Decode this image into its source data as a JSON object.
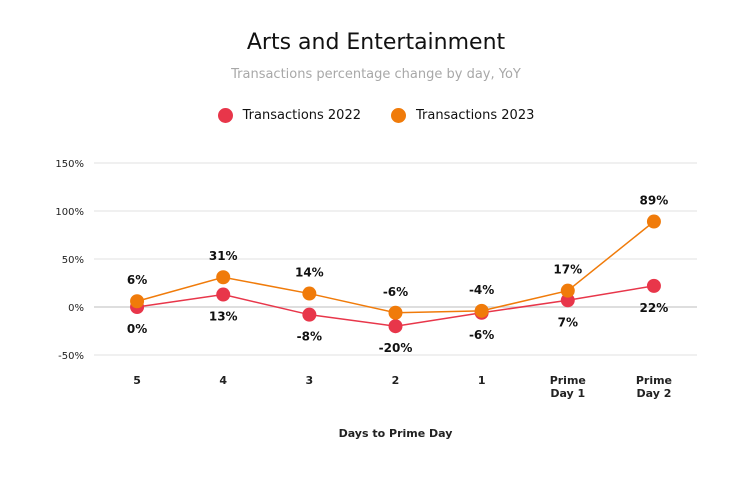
{
  "chart_data": {
    "type": "line",
    "title": "Arts and Entertainment",
    "subtitle": "Transactions percentage change by day, YoY",
    "xlabel": "Days to Prime Day",
    "ylabel": "",
    "categories": [
      [
        "5"
      ],
      [
        "4"
      ],
      [
        "3"
      ],
      [
        "2"
      ],
      [
        "1"
      ],
      [
        "Prime",
        "Day 1"
      ],
      [
        "Prime",
        "Day 2"
      ]
    ],
    "yticks": [
      150,
      100,
      50,
      0,
      -50
    ],
    "ytick_labels": [
      "150%",
      "100%",
      "50%",
      "0%",
      "-50%"
    ],
    "ylim": [
      -50,
      150
    ],
    "grid": true,
    "legend_position": "top-center",
    "series": [
      {
        "name": "Transactions 2022",
        "color": "#e8364a",
        "values": [
          0,
          13,
          -8,
          -20,
          -6,
          7,
          22
        ],
        "labels": [
          "0%",
          "13%",
          "-8%",
          "-20%",
          "-6%",
          "7%",
          "22%"
        ],
        "label_position": "below"
      },
      {
        "name": "Transactions 2023",
        "color": "#f07b0a",
        "values": [
          6,
          31,
          14,
          -6,
          -4,
          17,
          89
        ],
        "labels": [
          "6%",
          "31%",
          "14%",
          "-6%",
          "-4%",
          "17%",
          "89%"
        ],
        "label_position": "above"
      }
    ]
  }
}
